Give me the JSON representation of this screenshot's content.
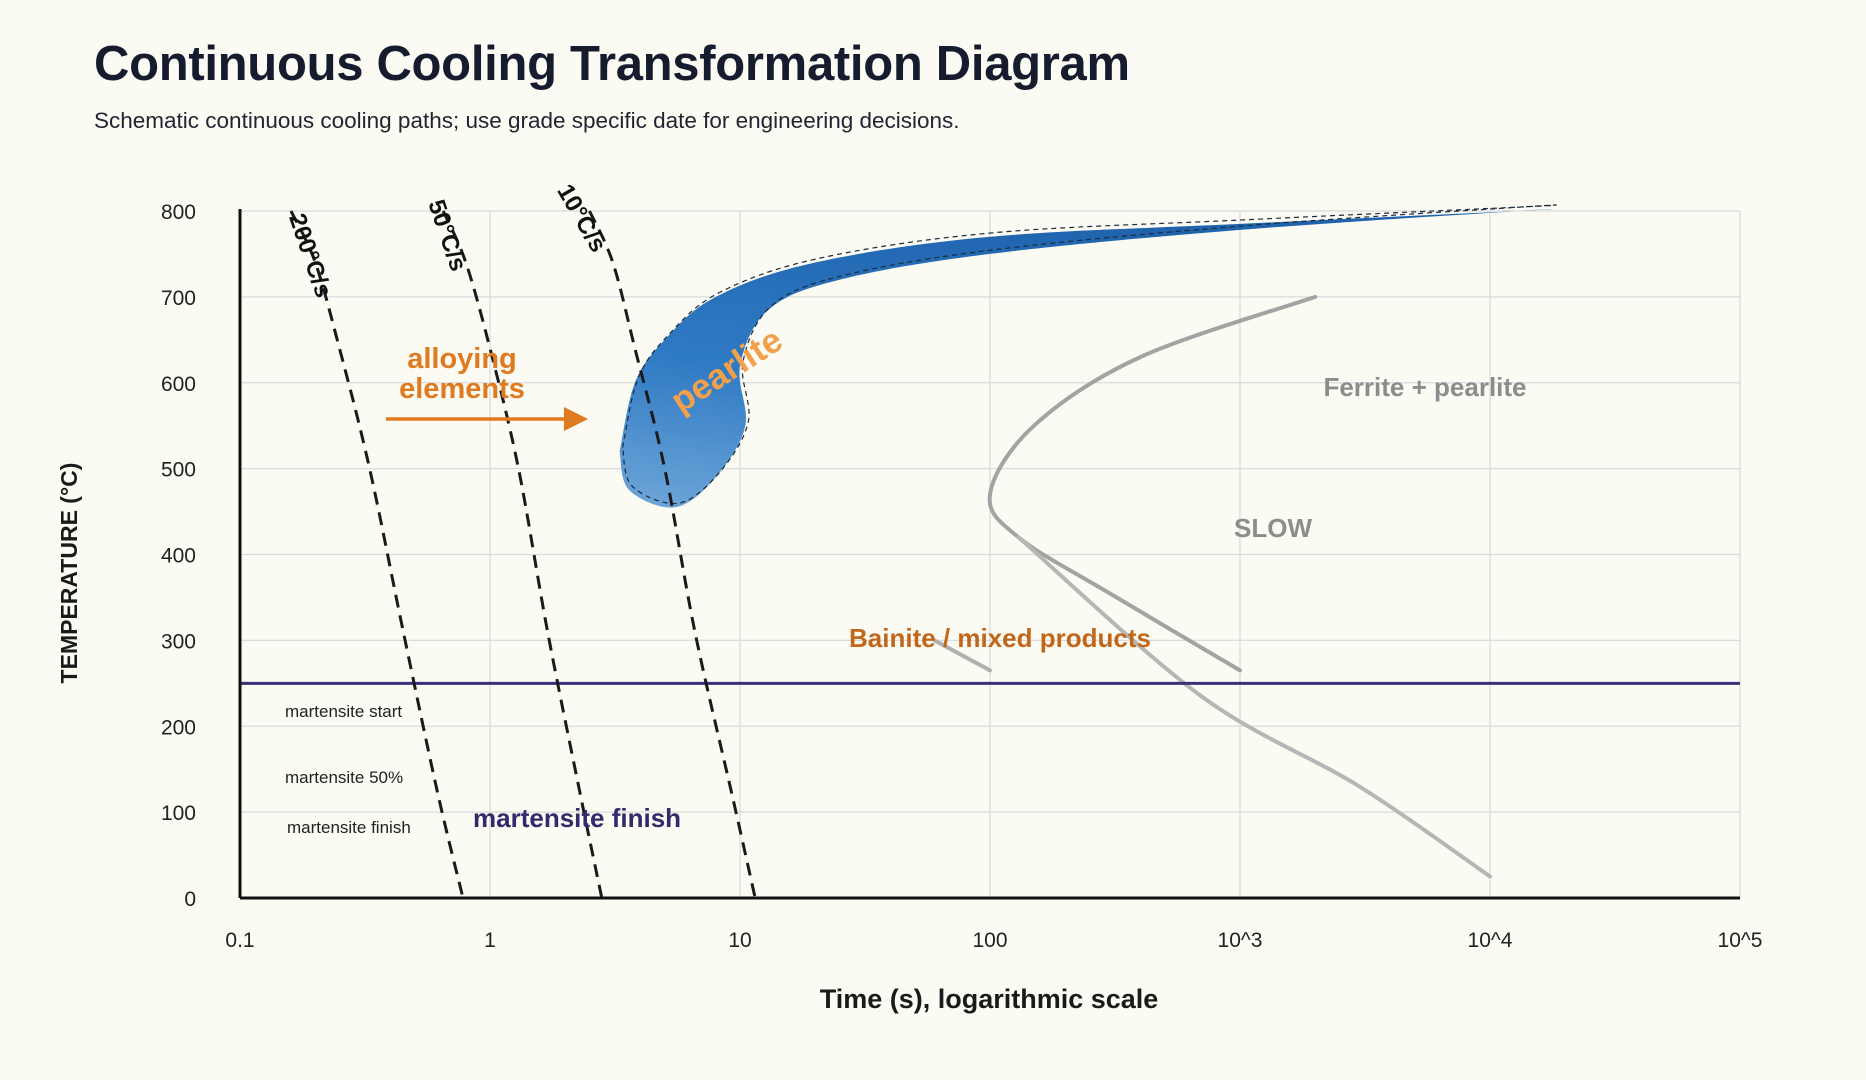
{
  "header": {
    "title": "Continuous Cooling Transformation Diagram",
    "subtitle": "Schematic continuous cooling paths; use grade specific date for engineering decisions."
  },
  "colors": {
    "background": "#fbfaf3",
    "grid": "#d9dbde",
    "axis": "#111111",
    "cooling_curve": "#1a1a1a",
    "pearlite_fill": "#2e78c2",
    "martensite_line": "#3a2f78",
    "orange_accent": "#e07a1f",
    "bainite_label": "#c0671b",
    "gray_curve": "#a3a3a3",
    "gray_label": "#8c8c8c",
    "martensite_label": "#34296b"
  },
  "chart_data": {
    "type": "line",
    "title": "Continuous Cooling Transformation Diagram",
    "subtitle": "Schematic continuous cooling paths; use grade specific date for engineering decisions.",
    "xlabel": "Time (s), logarithmic scale",
    "ylabel": "TEMPERATURE (°C)",
    "x_scale": "log",
    "xlim": [
      0.1,
      100000
    ],
    "ylim": [
      0,
      800
    ],
    "x_ticks": [
      0.1,
      1,
      10,
      100,
      1000,
      10000,
      100000
    ],
    "x_tick_labels": [
      "0.1",
      "1",
      "10",
      "100",
      "10^3",
      "10^4",
      "10^5"
    ],
    "y_ticks": [
      0,
      100,
      200,
      300,
      400,
      500,
      600,
      700,
      800
    ],
    "y_tick_labels": [
      "0",
      "100",
      "200",
      "300",
      "400",
      "500",
      "600",
      "700",
      "800"
    ],
    "grid": true,
    "cooling_curves": [
      {
        "label": "200°C/s",
        "points": [
          [
            0.16,
            800
          ],
          [
            0.2,
            740
          ],
          [
            0.25,
            640
          ],
          [
            0.33,
            500
          ],
          [
            0.45,
            310
          ],
          [
            0.62,
            120
          ],
          [
            0.78,
            0
          ]
        ]
      },
      {
        "label": "50°C/s",
        "points": [
          [
            0.65,
            800
          ],
          [
            0.8,
            740
          ],
          [
            1.0,
            640
          ],
          [
            1.3,
            500
          ],
          [
            1.7,
            310
          ],
          [
            2.3,
            120
          ],
          [
            2.8,
            0
          ]
        ]
      },
      {
        "label": "10°C/s",
        "points": [
          [
            2.5,
            800
          ],
          [
            3.1,
            740
          ],
          [
            3.8,
            640
          ],
          [
            5.0,
            500
          ],
          [
            6.6,
            310
          ],
          [
            9.3,
            120
          ],
          [
            11.5,
            0
          ]
        ]
      }
    ],
    "regions": [
      {
        "label": "pearlite",
        "type": "nose",
        "outline": [
          [
            3.3,
            520
          ],
          [
            3.8,
            600
          ],
          [
            5,
            650
          ],
          [
            8,
            700
          ],
          [
            20,
            740
          ],
          [
            100,
            770
          ],
          [
            1000,
            785
          ],
          [
            13000,
            800
          ],
          [
            13000,
            800
          ],
          [
            1000,
            778
          ],
          [
            100,
            750
          ],
          [
            25,
            720
          ],
          [
            13,
            685
          ],
          [
            10,
            620
          ],
          [
            10.5,
            550
          ],
          [
            8,
            490
          ],
          [
            5.5,
            455
          ],
          [
            3.6,
            475
          ],
          [
            3.3,
            520
          ]
        ]
      }
    ],
    "lines": [
      {
        "label": "martensite start",
        "y": 250
      },
      {
        "label": "Bainite / mixed products",
        "points": [
          [
            60,
            300
          ],
          [
            100,
            265
          ]
        ]
      },
      {
        "label": "Ferrite + pearlite",
        "points": [
          [
            2000,
            700
          ],
          [
            400,
            630
          ],
          [
            150,
            550
          ],
          [
            100,
            470
          ],
          [
            130,
            420
          ],
          [
            300,
            355
          ],
          [
            1000,
            265
          ]
        ]
      },
      {
        "label": "SLOW",
        "points": [
          [
            130,
            420
          ],
          [
            700,
            235
          ],
          [
            3000,
            130
          ],
          [
            10000,
            25
          ]
        ]
      }
    ],
    "annotations": [
      "alloying elements",
      "pearlite",
      "Ferrite + pearlite",
      "SLOW",
      "Bainite / mixed products",
      "martensite start",
      "martensite 50%",
      "martensite finish",
      "martensite finish"
    ]
  }
}
